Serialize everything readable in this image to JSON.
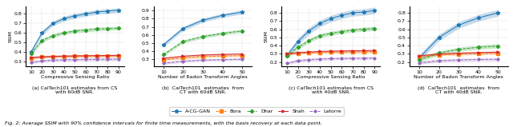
{
  "chart_data": [
    {
      "type": "line",
      "x": [
        10,
        20,
        30,
        40,
        50,
        60,
        70,
        80,
        90
      ],
      "xlabel": "Compressive Sensing Ratio",
      "ylabel": "SSIM",
      "caption": "(a) CalTech101 estimates from CS\nwith 60dB SNR.",
      "xlim": [
        5,
        95
      ],
      "xticks": [
        10,
        20,
        30,
        40,
        50,
        60,
        70,
        80,
        90
      ],
      "ylim": [
        0.25,
        0.88
      ],
      "yticks": [
        0.3,
        0.4,
        0.5,
        0.6,
        0.7,
        0.8
      ],
      "grid": true,
      "series": [
        {
          "name": "A-CG-GAN",
          "color": "#1f77b4",
          "marker": "*",
          "line_style": "solid",
          "values": [
            0.4,
            0.6,
            0.7,
            0.75,
            0.78,
            0.8,
            0.82,
            0.83,
            0.84
          ],
          "ci": [
            0.025,
            0.025,
            0.025,
            0.025,
            0.025,
            0.025,
            0.025,
            0.025,
            0.025
          ]
        },
        {
          "name": "Bora",
          "color": "#ff7f0e",
          "marker": "s",
          "line_style": "dashed",
          "values": [
            0.335,
            0.345,
            0.35,
            0.352,
            0.354,
            0.356,
            0.357,
            0.358,
            0.358
          ],
          "ci": [
            0.012,
            0.012,
            0.012,
            0.012,
            0.012,
            0.012,
            0.012,
            0.012,
            0.012
          ]
        },
        {
          "name": "Dhar",
          "color": "#2ca02c",
          "marker": "D",
          "line_style": "dashed",
          "values": [
            0.38,
            0.52,
            0.57,
            0.6,
            0.62,
            0.63,
            0.64,
            0.645,
            0.65
          ],
          "ci": [
            0.02,
            0.02,
            0.02,
            0.02,
            0.02,
            0.02,
            0.02,
            0.02,
            0.02
          ]
        },
        {
          "name": "Shah",
          "color": "#d62728",
          "marker": ">",
          "line_style": "solid",
          "values": [
            0.34,
            0.348,
            0.352,
            0.355,
            0.357,
            0.359,
            0.36,
            0.361,
            0.362
          ],
          "ci": [
            0.012,
            0.012,
            0.012,
            0.012,
            0.012,
            0.012,
            0.012,
            0.012,
            0.012
          ]
        },
        {
          "name": "Latorre",
          "color": "#9467bd",
          "marker": "P",
          "line_style": "dashed",
          "values": [
            0.29,
            0.305,
            0.312,
            0.316,
            0.318,
            0.32,
            0.321,
            0.322,
            0.323
          ],
          "ci": [
            0.015,
            0.015,
            0.015,
            0.015,
            0.015,
            0.015,
            0.015,
            0.015,
            0.015
          ]
        }
      ]
    },
    {
      "type": "line",
      "x": [
        10,
        20,
        30,
        40,
        50
      ],
      "xlabel": "Number of Radon Transform Angles",
      "caption": "(b)  CalTech101  estimates  from\nCT with 60dB SNR.",
      "xlim": [
        5,
        55
      ],
      "xticks": [
        10,
        20,
        30,
        40,
        50
      ],
      "ylim": [
        0.22,
        0.95
      ],
      "yticks": [
        0.3,
        0.4,
        0.5,
        0.6,
        0.7,
        0.8,
        0.9
      ],
      "grid": true,
      "series": [
        {
          "name": "A-CG-GAN",
          "color": "#1f77b4",
          "marker": "*",
          "line_style": "solid",
          "values": [
            0.48,
            0.68,
            0.78,
            0.84,
            0.88
          ],
          "ci": [
            0.025,
            0.025,
            0.025,
            0.025,
            0.025
          ]
        },
        {
          "name": "Bora",
          "color": "#ff7f0e",
          "marker": "s",
          "line_style": "dashed",
          "values": [
            0.295,
            0.32,
            0.335,
            0.342,
            0.347
          ],
          "ci": [
            0.012,
            0.012,
            0.012,
            0.012,
            0.012
          ]
        },
        {
          "name": "Dhar",
          "color": "#2ca02c",
          "marker": "D",
          "line_style": "dashed",
          "values": [
            0.36,
            0.52,
            0.58,
            0.62,
            0.65
          ],
          "ci": [
            0.02,
            0.02,
            0.02,
            0.02,
            0.02
          ]
        },
        {
          "name": "Shah",
          "color": "#d62728",
          "marker": ">",
          "line_style": "solid",
          "values": [
            0.315,
            0.34,
            0.355,
            0.362,
            0.368
          ],
          "ci": [
            0.012,
            0.012,
            0.012,
            0.012,
            0.012
          ]
        },
        {
          "name": "Latorre",
          "color": "#9467bd",
          "marker": "P",
          "line_style": "dashed",
          "values": [
            0.255,
            0.28,
            0.292,
            0.298,
            0.303
          ],
          "ci": [
            0.015,
            0.015,
            0.015,
            0.015,
            0.015
          ]
        }
      ]
    },
    {
      "type": "line",
      "x": [
        10,
        20,
        30,
        40,
        50,
        60,
        70,
        80,
        90
      ],
      "xlabel": "Compressive Sensing Ratio",
      "ylabel": "SSIM",
      "caption": "(c) CalTech101 estimates from CS\nwith 40dB SNR.",
      "xlim": [
        5,
        95
      ],
      "xticks": [
        10,
        20,
        30,
        40,
        50,
        60,
        70,
        80,
        90
      ],
      "ylim": [
        0.15,
        0.88
      ],
      "yticks": [
        0.2,
        0.3,
        0.4,
        0.5,
        0.6,
        0.7,
        0.8
      ],
      "grid": true,
      "series": [
        {
          "name": "A-CG-GAN",
          "color": "#1f77b4",
          "marker": "*",
          "line_style": "solid",
          "values": [
            0.28,
            0.45,
            0.58,
            0.67,
            0.73,
            0.77,
            0.8,
            0.81,
            0.83
          ],
          "ci": [
            0.03,
            0.04,
            0.04,
            0.04,
            0.04,
            0.04,
            0.04,
            0.04,
            0.04
          ]
        },
        {
          "name": "Bora",
          "color": "#ff7f0e",
          "marker": "s",
          "line_style": "dashed",
          "values": [
            0.295,
            0.305,
            0.31,
            0.315,
            0.318,
            0.32,
            0.321,
            0.322,
            0.323
          ],
          "ci": [
            0.012,
            0.012,
            0.012,
            0.012,
            0.012,
            0.012,
            0.012,
            0.012,
            0.012
          ]
        },
        {
          "name": "Dhar",
          "color": "#2ca02c",
          "marker": "D",
          "line_style": "dashed",
          "values": [
            0.27,
            0.38,
            0.46,
            0.52,
            0.55,
            0.57,
            0.59,
            0.6,
            0.61
          ],
          "ci": [
            0.025,
            0.025,
            0.025,
            0.025,
            0.025,
            0.025,
            0.025,
            0.025,
            0.025
          ]
        },
        {
          "name": "Shah",
          "color": "#d62728",
          "marker": ">",
          "line_style": "solid",
          "values": [
            0.3,
            0.315,
            0.322,
            0.328,
            0.332,
            0.335,
            0.337,
            0.338,
            0.34
          ],
          "ci": [
            0.012,
            0.012,
            0.012,
            0.012,
            0.012,
            0.012,
            0.012,
            0.012,
            0.012
          ]
        },
        {
          "name": "Latorre",
          "color": "#9467bd",
          "marker": "P",
          "line_style": "dashed",
          "values": [
            0.185,
            0.215,
            0.228,
            0.235,
            0.24,
            0.243,
            0.245,
            0.246,
            0.248
          ],
          "ci": [
            0.018,
            0.018,
            0.018,
            0.018,
            0.018,
            0.018,
            0.018,
            0.018,
            0.018
          ]
        }
      ]
    },
    {
      "type": "line",
      "x": [
        10,
        20,
        30,
        40,
        50
      ],
      "xlabel": "Number of Radon Transform Angles",
      "caption": "(d)  CalTech101  estimates  from\nCT with 40dB SNR.",
      "xlim": [
        5,
        55
      ],
      "xticks": [
        10,
        20,
        30,
        40,
        50
      ],
      "ylim": [
        0.15,
        0.88
      ],
      "yticks": [
        0.2,
        0.3,
        0.4,
        0.5,
        0.6,
        0.7,
        0.8
      ],
      "grid": true,
      "series": [
        {
          "name": "A-CG-GAN",
          "color": "#1f77b4",
          "marker": "*",
          "line_style": "solid",
          "values": [
            0.25,
            0.5,
            0.65,
            0.74,
            0.8
          ],
          "ci": [
            0.04,
            0.04,
            0.04,
            0.04,
            0.04
          ]
        },
        {
          "name": "Bora",
          "color": "#ff7f0e",
          "marker": "s",
          "line_style": "dashed",
          "values": [
            0.265,
            0.285,
            0.295,
            0.3,
            0.304
          ],
          "ci": [
            0.012,
            0.012,
            0.012,
            0.012,
            0.012
          ]
        },
        {
          "name": "Dhar",
          "color": "#2ca02c",
          "marker": "D",
          "line_style": "dashed",
          "values": [
            0.225,
            0.31,
            0.355,
            0.38,
            0.395
          ],
          "ci": [
            0.025,
            0.025,
            0.025,
            0.025,
            0.025
          ]
        },
        {
          "name": "Shah",
          "color": "#d62728",
          "marker": ">",
          "line_style": "solid",
          "values": [
            0.275,
            0.298,
            0.308,
            0.315,
            0.32
          ],
          "ci": [
            0.012,
            0.012,
            0.012,
            0.012,
            0.012
          ]
        },
        {
          "name": "Latorre",
          "color": "#9467bd",
          "marker": "P",
          "line_style": "dashed",
          "values": [
            0.19,
            0.215,
            0.225,
            0.23,
            0.233
          ],
          "ci": [
            0.018,
            0.018,
            0.018,
            0.018,
            0.018
          ]
        }
      ]
    }
  ],
  "legend": "lower center",
  "caption": "Fig. 2: Average SSIM with 90% confidence intervals for finite time measurements, with the basis recovery at each data point."
}
